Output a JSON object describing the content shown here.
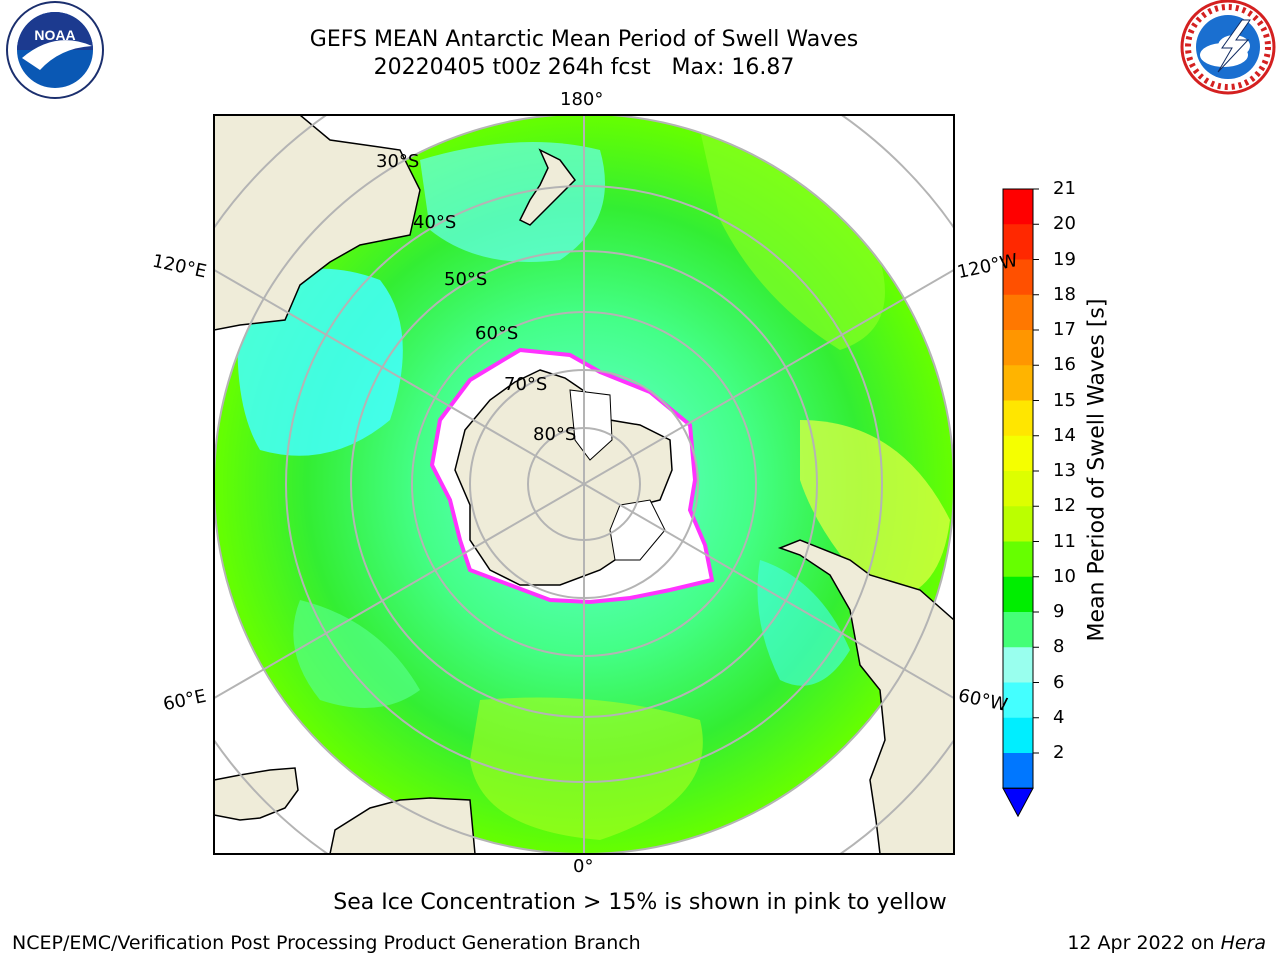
{
  "header": {
    "title_line1": "GEFS MEAN Antarctic Mean Period of Swell Waves",
    "title_line2": "20220405 t00z 264h fcst   Max: 16.87"
  },
  "logos": {
    "left": {
      "name": "noaa-logo",
      "text": "NOAA",
      "ring_text": "NATIONAL OCEANIC AND ATMOSPHERIC ADMINISTRATION · U.S. DEPARTMENT OF COMMERCE"
    },
    "right": {
      "name": "nws-logo",
      "ring_text": "NATIONAL WEATHER SERVICE"
    }
  },
  "map": {
    "longitude_labels": {
      "top": "180°",
      "bottom": "0°",
      "upper_left": "120°E",
      "upper_right": "120°W",
      "lower_left": "60°E",
      "lower_right": "60°W"
    },
    "latitude_labels": [
      "30°S",
      "40°S",
      "50°S",
      "60°S",
      "70°S",
      "80°S"
    ],
    "colors": {
      "ocean_main": "#33ee33",
      "land": "#efecd9",
      "ice": "#ffffff",
      "ice_edge": "#ff33ff",
      "grid": "#b4b4b4"
    }
  },
  "colorbar": {
    "label": "Mean Period of Swell Waves [s]",
    "ticks": [
      "21",
      "20",
      "19",
      "18",
      "17",
      "16",
      "15",
      "14",
      "13",
      "12",
      "11",
      "10",
      "9",
      "8",
      "6",
      "4",
      "2"
    ],
    "colors": [
      "#ff0000",
      "#ff2800",
      "#ff5000",
      "#ff7800",
      "#ff9600",
      "#ffb400",
      "#ffe600",
      "#f5ff00",
      "#ddff00",
      "#bbff00",
      "#66ff00",
      "#00ee00",
      "#44ff77",
      "#99ffee",
      "#44ffff",
      "#00eeff",
      "#0077ff"
    ],
    "extend_color": "#0000ff"
  },
  "footer": {
    "caption": "Sea Ice Concentration > 15% is shown in pink to yellow",
    "left": "NCEP/EMC/Verification Post Processing Product Generation Branch",
    "right_date": "12 Apr 2022 on ",
    "right_host": "Hera"
  }
}
